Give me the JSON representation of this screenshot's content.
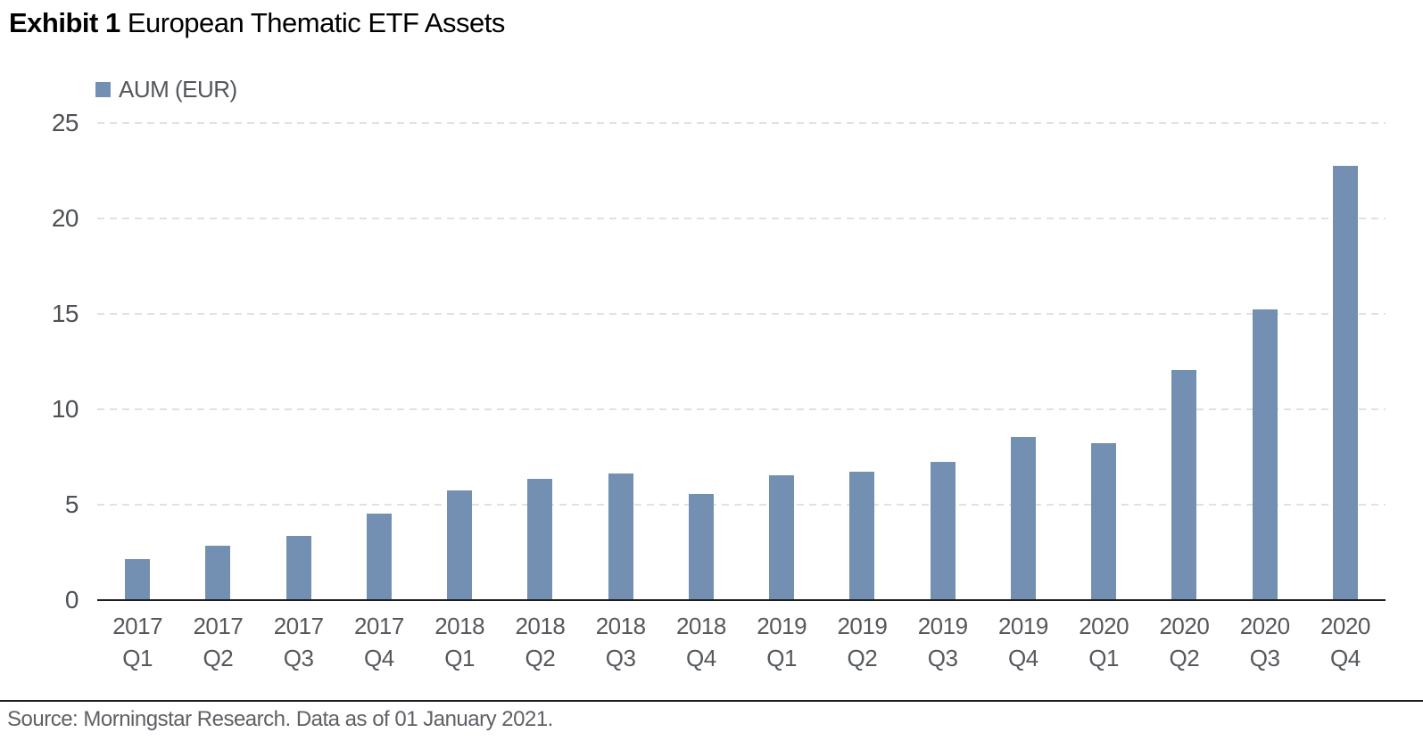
{
  "header": {
    "exhibit_label": "Exhibit 1",
    "title": "European Thematic ETF Assets"
  },
  "legend": {
    "label": "AUM (EUR)"
  },
  "chart_data": {
    "type": "bar",
    "title": "European Thematic ETF Assets",
    "series": [
      {
        "name": "AUM (EUR)",
        "values": [
          2.1,
          2.8,
          3.3,
          4.5,
          5.7,
          6.3,
          6.6,
          5.5,
          6.5,
          6.7,
          7.2,
          8.5,
          8.2,
          12.0,
          15.2,
          22.7
        ]
      }
    ],
    "categories": [
      {
        "year": "2017",
        "quarter": "Q1"
      },
      {
        "year": "2017",
        "quarter": "Q2"
      },
      {
        "year": "2017",
        "quarter": "Q3"
      },
      {
        "year": "2017",
        "quarter": "Q4"
      },
      {
        "year": "2018",
        "quarter": "Q1"
      },
      {
        "year": "2018",
        "quarter": "Q2"
      },
      {
        "year": "2018",
        "quarter": "Q3"
      },
      {
        "year": "2018",
        "quarter": "Q4"
      },
      {
        "year": "2019",
        "quarter": "Q1"
      },
      {
        "year": "2019",
        "quarter": "Q2"
      },
      {
        "year": "2019",
        "quarter": "Q3"
      },
      {
        "year": "2019",
        "quarter": "Q4"
      },
      {
        "year": "2020",
        "quarter": "Q1"
      },
      {
        "year": "2020",
        "quarter": "Q2"
      },
      {
        "year": "2020",
        "quarter": "Q3"
      },
      {
        "year": "2020",
        "quarter": "Q4"
      }
    ],
    "ylim": [
      0,
      25
    ],
    "yticks": [
      0,
      5,
      10,
      15,
      20,
      25
    ],
    "grid": "horizontal-dashed",
    "legend_position": "top-left",
    "colors": {
      "bar": "#7390b2",
      "gridline": "#e1e1e1",
      "axis_line": "#1f1f1f",
      "tick_text": "#55585c"
    }
  },
  "footer": {
    "source_note": "Source: Morningstar Research. Data as of 01 January 2021."
  }
}
